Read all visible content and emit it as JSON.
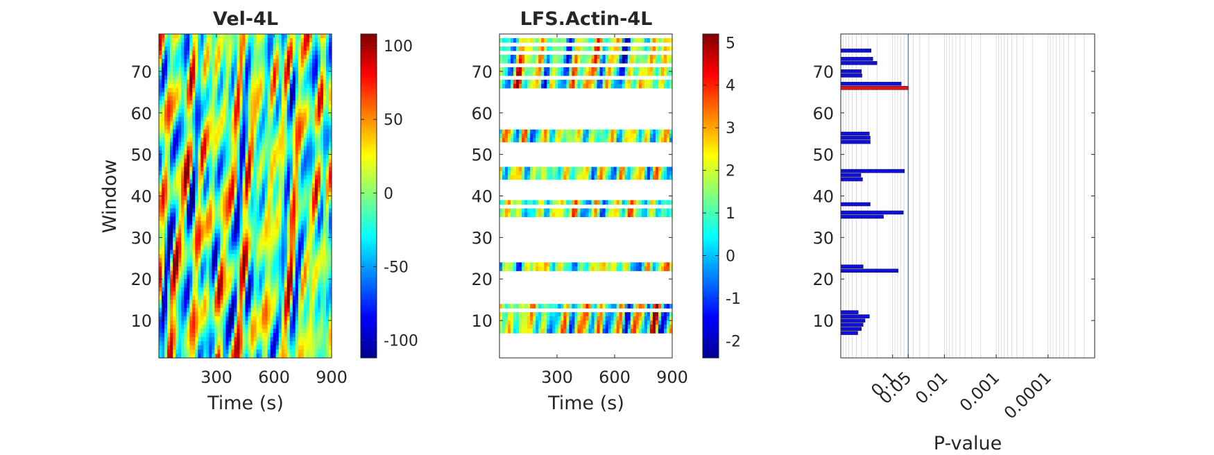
{
  "chart_data": [
    {
      "type": "heatmap",
      "title": "Vel-4L",
      "xlabel": "Time (s)",
      "ylabel": "Window",
      "xlim": [
        0,
        900
      ],
      "ylim": [
        1,
        79
      ],
      "x_ticks": [
        300,
        600,
        900
      ],
      "y_ticks": [
        10,
        20,
        30,
        40,
        50,
        60,
        70
      ],
      "colormap": "jet",
      "colorbar": {
        "range": [
          -112,
          108
        ],
        "ticks": [
          100,
          50,
          0,
          -50,
          -100
        ]
      }
    },
    {
      "type": "heatmap",
      "title": "LFS.Actin-4L",
      "xlabel": "Time (s)",
      "ylabel": "",
      "xlim": [
        0,
        900
      ],
      "ylim": [
        1,
        79
      ],
      "x_ticks": [
        300,
        600,
        900
      ],
      "y_ticks": [
        10,
        20,
        30,
        40,
        50,
        60,
        70
      ],
      "colormap": "jet",
      "colorbar": {
        "range": [
          -2.4,
          5.2
        ],
        "ticks": [
          5,
          4,
          3,
          2,
          1,
          0,
          -1,
          -2
        ]
      },
      "valid_window_bands": [
        [
          7,
          12
        ],
        [
          13,
          14
        ],
        [
          22,
          24
        ],
        [
          35,
          37
        ],
        [
          38,
          39
        ],
        [
          44,
          47
        ],
        [
          53,
          56
        ],
        [
          66,
          68
        ],
        [
          69,
          71
        ],
        [
          72,
          74
        ],
        [
          75,
          76
        ],
        [
          77,
          78
        ]
      ]
    },
    {
      "type": "bar",
      "orientation": "horizontal",
      "title": "",
      "xlabel": "P-value",
      "ylabel": "",
      "xscale": "log-reversed",
      "x_ticks": [
        "0.1",
        "0.05",
        "0.01",
        "0.001",
        "0.0001"
      ],
      "y_ticks": [
        10,
        20,
        30,
        40,
        50,
        60,
        70
      ],
      "ylim": [
        1,
        79
      ],
      "threshold_line": 0.05,
      "grid": "vertical",
      "colors": {
        "normal": "#1010d8",
        "significant": "#e81010"
      },
      "bars": [
        {
          "window": 7,
          "p": 0.47,
          "sig": false
        },
        {
          "window": 8,
          "p": 0.4,
          "sig": false
        },
        {
          "window": 9,
          "p": 0.37,
          "sig": false
        },
        {
          "window": 10,
          "p": 0.34,
          "sig": false
        },
        {
          "window": 11,
          "p": 0.28,
          "sig": false
        },
        {
          "window": 12,
          "p": 0.46,
          "sig": false
        },
        {
          "window": 22,
          "p": 0.078,
          "sig": false
        },
        {
          "window": 23,
          "p": 0.37,
          "sig": false
        },
        {
          "window": 35,
          "p": 0.15,
          "sig": false
        },
        {
          "window": 36,
          "p": 0.062,
          "sig": false
        },
        {
          "window": 38,
          "p": 0.27,
          "sig": false
        },
        {
          "window": 44,
          "p": 0.38,
          "sig": false
        },
        {
          "window": 45,
          "p": 0.41,
          "sig": false
        },
        {
          "window": 46,
          "p": 0.059,
          "sig": false
        },
        {
          "window": 53,
          "p": 0.27,
          "sig": false
        },
        {
          "window": 54,
          "p": 0.27,
          "sig": false
        },
        {
          "window": 55,
          "p": 0.28,
          "sig": false
        },
        {
          "window": 66,
          "p": 0.05,
          "sig": true
        },
        {
          "window": 67,
          "p": 0.068,
          "sig": false
        },
        {
          "window": 69,
          "p": 0.39,
          "sig": false
        },
        {
          "window": 70,
          "p": 0.4,
          "sig": false
        },
        {
          "window": 72,
          "p": 0.2,
          "sig": false
        },
        {
          "window": 73,
          "p": 0.24,
          "sig": false
        },
        {
          "window": 75,
          "p": 0.26,
          "sig": false
        }
      ]
    }
  ]
}
